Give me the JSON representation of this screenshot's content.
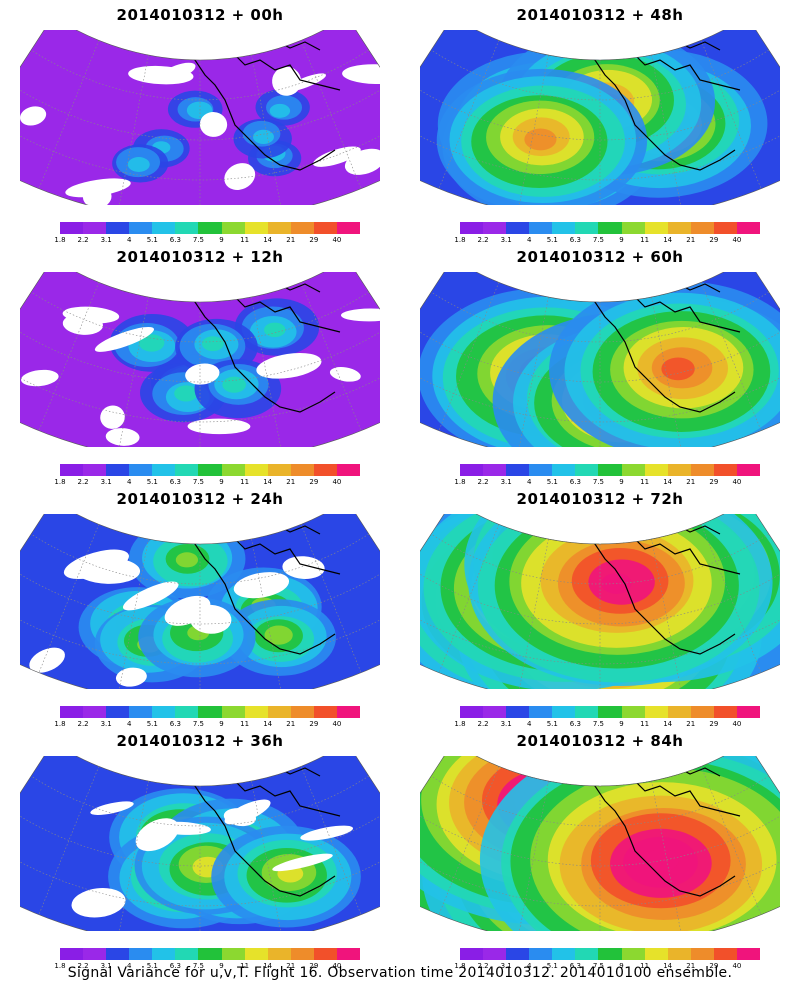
{
  "caption": "Signal Variance for u,v,T. Flight 16. Observation time 2014010312. 2014010100 ensemble.",
  "panels": [
    {
      "title": "2014010312 + 00h",
      "lead_hours": 0
    },
    {
      "title": "2014010312 + 48h",
      "lead_hours": 48
    },
    {
      "title": "2014010312 + 12h",
      "lead_hours": 12
    },
    {
      "title": "2014010312 + 60h",
      "lead_hours": 60
    },
    {
      "title": "2014010312 + 24h",
      "lead_hours": 24
    },
    {
      "title": "2014010312 + 72h",
      "lead_hours": 72
    },
    {
      "title": "2014010312 + 36h",
      "lead_hours": 36
    },
    {
      "title": "2014010312 + 84h",
      "lead_hours": 84
    }
  ],
  "colorbar": {
    "ticks": [
      "1.8",
      "2.2",
      "3.1",
      "4",
      "5.1",
      "6.3",
      "7.5",
      "9",
      "11",
      "14",
      "21",
      "29",
      "40"
    ],
    "colors": [
      "#8a1ee6",
      "#9a28e8",
      "#2a46e6",
      "#2a8cf0",
      "#22c2e8",
      "#22d8b4",
      "#22c23a",
      "#8cd830",
      "#e6e22a",
      "#eab42a",
      "#ee8c2a",
      "#f2502a",
      "#f0147c"
    ]
  }
}
